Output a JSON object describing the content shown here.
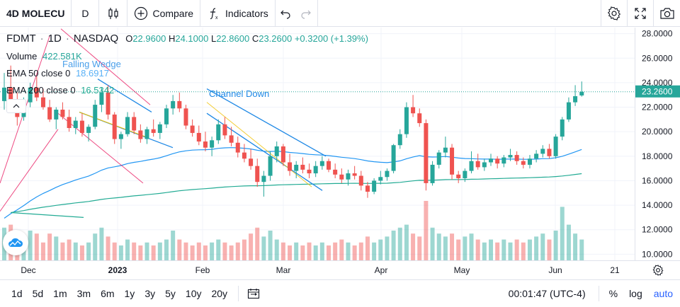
{
  "toolbar": {
    "symbol": "4D MOLECU",
    "interval": "D",
    "compare_label": "Compare",
    "indicators_label": "Indicators"
  },
  "legend": {
    "symbol": "FDMT",
    "interval": "1D",
    "exchange": "NASDAQ",
    "open_label": "O",
    "open": "22.9600",
    "high_label": "H",
    "high": "24.1000",
    "low_label": "L",
    "low": "22.8600",
    "close_label": "C",
    "close": "23.2600",
    "change": "+0.3200 (+1.39%)",
    "volume_label": "Volume",
    "volume_value": "422.581K",
    "ema50_label": "EMA 50 close 0",
    "ema50_value": "18.6917",
    "ema200_label": "EMA 200 close 0",
    "ema200_value": "16.5342"
  },
  "drawings": {
    "falling_wedge": "Falling Wedge",
    "channel_down": "Channel Down"
  },
  "price_axis": {
    "labels": [
      "28.0000",
      "26.0000",
      "24.0000",
      "22.0000",
      "20.0000",
      "18.0000",
      "16.0000",
      "14.0000",
      "12.0000",
      "10.0000"
    ],
    "current_price": "23.2600"
  },
  "time_axis": {
    "labels": [
      "Dec",
      "2023",
      "Feb",
      "Mar",
      "Apr",
      "May",
      "Jun",
      "21"
    ]
  },
  "bottom_bar": {
    "ranges": [
      "1d",
      "5d",
      "1m",
      "3m",
      "6m",
      "1y",
      "3y",
      "5y",
      "10y",
      "20y"
    ],
    "time": "00:01:47 (UTC-4)",
    "percent_label": "%",
    "log_label": "log",
    "auto_label": "auto"
  },
  "colors": {
    "up": "#26a69a",
    "down": "#ef5350",
    "ema50": "#2196f3",
    "ema200": "#22ab94",
    "drawing": "#1e88e5",
    "fib": "#e91e63",
    "accent": "#2962ff"
  },
  "chart_data": {
    "type": "candlestick",
    "ylim": [
      9.5,
      28.5
    ],
    "ohlc": [
      [
        22.5,
        24.8,
        21.8,
        23.6
      ],
      [
        23.6,
        25.4,
        22.2,
        22.6
      ],
      [
        22.6,
        23.2,
        20.5,
        21.2
      ],
      [
        21.2,
        22.8,
        20.9,
        22.4
      ],
      [
        22.4,
        24.0,
        22.0,
        23.6
      ],
      [
        23.6,
        24.5,
        22.5,
        22.8
      ],
      [
        22.8,
        23.5,
        21.8,
        22.0
      ],
      [
        22.0,
        22.6,
        20.8,
        21.0
      ],
      [
        21.0,
        22.0,
        20.2,
        21.8
      ],
      [
        21.8,
        22.4,
        21.0,
        21.2
      ],
      [
        21.2,
        21.8,
        20.0,
        20.3
      ],
      [
        20.3,
        21.2,
        19.8,
        20.9
      ],
      [
        20.9,
        21.5,
        19.6,
        19.9
      ],
      [
        19.9,
        20.6,
        19.2,
        20.4
      ],
      [
        20.4,
        22.6,
        20.2,
        22.2
      ],
      [
        22.2,
        23.6,
        21.6,
        23.2
      ],
      [
        23.2,
        23.8,
        21.0,
        21.4
      ],
      [
        21.4,
        21.6,
        19.0,
        19.4
      ],
      [
        19.4,
        20.0,
        18.6,
        19.8
      ],
      [
        19.8,
        21.6,
        19.6,
        21.2
      ],
      [
        21.2,
        21.6,
        19.8,
        20.1
      ],
      [
        20.1,
        20.6,
        19.1,
        19.4
      ],
      [
        19.4,
        20.4,
        19.0,
        20.2
      ],
      [
        20.2,
        21.0,
        19.6,
        19.9
      ],
      [
        19.9,
        20.8,
        19.4,
        20.6
      ],
      [
        20.6,
        22.2,
        20.3,
        21.9
      ],
      [
        21.9,
        23.0,
        21.4,
        22.5
      ],
      [
        22.5,
        23.2,
        21.6,
        21.9
      ],
      [
        21.9,
        22.2,
        20.2,
        20.5
      ],
      [
        20.5,
        21.0,
        19.6,
        19.9
      ],
      [
        19.9,
        20.5,
        18.9,
        19.2
      ],
      [
        19.2,
        20.0,
        18.4,
        18.7
      ],
      [
        18.7,
        19.6,
        18.0,
        19.3
      ],
      [
        19.3,
        21.0,
        19.0,
        20.6
      ],
      [
        20.6,
        21.2,
        19.4,
        19.7
      ],
      [
        19.7,
        20.4,
        18.8,
        19.1
      ],
      [
        19.1,
        19.6,
        17.9,
        18.3
      ],
      [
        18.3,
        19.0,
        17.5,
        17.8
      ],
      [
        17.8,
        18.6,
        16.9,
        17.2
      ],
      [
        17.2,
        17.8,
        15.5,
        15.9
      ],
      [
        15.9,
        16.8,
        14.7,
        16.4
      ],
      [
        16.4,
        18.4,
        16.0,
        18.0
      ],
      [
        18.0,
        19.2,
        17.5,
        18.8
      ],
      [
        18.8,
        19.0,
        17.2,
        17.5
      ],
      [
        17.5,
        18.2,
        16.4,
        16.8
      ],
      [
        16.8,
        17.6,
        16.2,
        17.3
      ],
      [
        17.3,
        17.9,
        16.6,
        16.9
      ],
      [
        16.9,
        17.4,
        16.2,
        16.6
      ],
      [
        16.6,
        17.6,
        16.3,
        17.2
      ],
      [
        17.2,
        18.0,
        16.9,
        17.6
      ],
      [
        17.6,
        17.8,
        16.7,
        16.9
      ],
      [
        16.9,
        17.4,
        16.2,
        16.5
      ],
      [
        16.5,
        17.0,
        15.8,
        16.1
      ],
      [
        16.1,
        16.9,
        15.6,
        16.6
      ],
      [
        16.6,
        17.2,
        16.1,
        16.4
      ],
      [
        16.4,
        16.8,
        15.2,
        15.6
      ],
      [
        15.6,
        15.9,
        14.6,
        15.1
      ],
      [
        15.1,
        16.2,
        14.9,
        16.0
      ],
      [
        16.0,
        16.8,
        15.7,
        16.3
      ],
      [
        16.3,
        17.0,
        16.0,
        16.8
      ],
      [
        16.8,
        19.0,
        16.6,
        18.9
      ],
      [
        18.9,
        20.2,
        18.6,
        19.8
      ],
      [
        19.8,
        22.4,
        19.5,
        22.0
      ],
      [
        22.0,
        23.0,
        21.2,
        21.5
      ],
      [
        21.5,
        21.9,
        20.4,
        20.7
      ],
      [
        20.7,
        21.0,
        15.2,
        15.8
      ],
      [
        15.8,
        17.6,
        15.6,
        17.3
      ],
      [
        17.3,
        18.5,
        17.0,
        18.3
      ],
      [
        18.3,
        19.6,
        17.9,
        18.7
      ],
      [
        18.7,
        19.0,
        16.1,
        16.5
      ],
      [
        16.5,
        16.8,
        15.8,
        16.2
      ],
      [
        16.2,
        17.0,
        15.9,
        16.8
      ],
      [
        16.8,
        18.4,
        16.6,
        17.6
      ],
      [
        17.6,
        18.2,
        16.9,
        17.1
      ],
      [
        17.1,
        17.8,
        16.8,
        17.5
      ],
      [
        17.5,
        18.2,
        17.2,
        17.8
      ],
      [
        17.8,
        18.0,
        17.0,
        17.4
      ],
      [
        17.4,
        18.1,
        17.1,
        17.9
      ],
      [
        17.9,
        18.6,
        17.6,
        18.1
      ],
      [
        18.1,
        18.4,
        17.3,
        17.6
      ],
      [
        17.6,
        17.9,
        17.0,
        17.3
      ],
      [
        17.3,
        18.1,
        17.0,
        17.8
      ],
      [
        17.8,
        18.5,
        17.5,
        18.2
      ],
      [
        18.2,
        18.9,
        17.9,
        18.6
      ],
      [
        18.6,
        19.0,
        17.8,
        18.0
      ],
      [
        18.0,
        19.8,
        17.8,
        19.6
      ],
      [
        19.6,
        21.2,
        19.3,
        21.0
      ],
      [
        21.0,
        22.8,
        20.8,
        22.4
      ],
      [
        22.4,
        23.8,
        22.1,
        22.9
      ],
      [
        22.96,
        24.1,
        22.86,
        23.26
      ]
    ],
    "volume": [
      0.55,
      0.6,
      0.35,
      0.4,
      0.5,
      0.45,
      0.3,
      0.45,
      0.4,
      0.3,
      0.35,
      0.3,
      0.25,
      0.3,
      0.45,
      0.55,
      0.4,
      0.3,
      0.25,
      0.35,
      0.3,
      0.25,
      0.3,
      0.25,
      0.3,
      0.35,
      0.5,
      0.35,
      0.3,
      0.25,
      0.3,
      0.25,
      0.3,
      0.35,
      0.3,
      0.25,
      0.3,
      0.35,
      0.45,
      0.55,
      0.4,
      0.5,
      0.35,
      0.3,
      0.25,
      0.3,
      0.25,
      0.3,
      0.25,
      0.3,
      0.25,
      0.3,
      0.35,
      0.3,
      0.25,
      0.3,
      0.4,
      0.3,
      0.35,
      0.4,
      0.5,
      0.55,
      0.6,
      0.45,
      0.4,
      1.0,
      0.55,
      0.45,
      0.4,
      0.45,
      0.35,
      0.4,
      0.45,
      0.35,
      0.3,
      0.35,
      0.3,
      0.35,
      0.3,
      0.35,
      0.3,
      0.35,
      0.4,
      0.45,
      0.35,
      0.5,
      0.9,
      0.6,
      0.45,
      0.35
    ]
  }
}
